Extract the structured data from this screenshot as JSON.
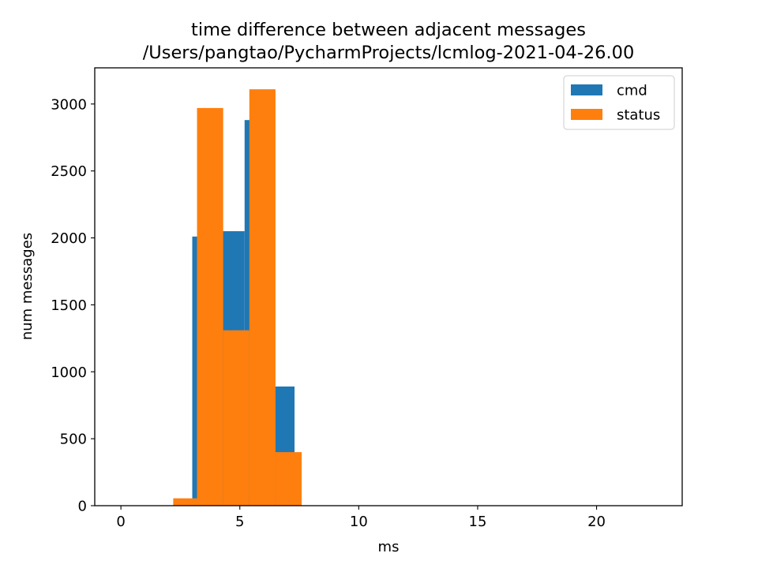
{
  "chart_data": {
    "type": "histogram",
    "title_lines": [
      "time difference between adjacent messages",
      "/Users/pangtao/PycharmProjects/lcmlog-2021-04-26.00"
    ],
    "xlabel": "ms",
    "ylabel": "num messages",
    "xlim": [
      -1.1,
      23.6
    ],
    "ylim": [
      0,
      3270
    ],
    "xticks": [
      0,
      5,
      10,
      15,
      20
    ],
    "yticks": [
      0,
      500,
      1000,
      1500,
      2000,
      2500,
      3000
    ],
    "grid": false,
    "legend_position": "top-right",
    "series": [
      {
        "name": "cmd",
        "color": "#1f77b4",
        "bins": [
          {
            "x0": 0.0,
            "x1": 1.0,
            "count": 0
          },
          {
            "x0": 3.0,
            "x1": 4.2,
            "count": 2010
          },
          {
            "x0": 4.2,
            "x1": 5.2,
            "count": 2050
          },
          {
            "x0": 5.2,
            "x1": 6.45,
            "count": 2880
          },
          {
            "x0": 6.45,
            "x1": 7.3,
            "count": 890
          },
          {
            "x0": 7.3,
            "x1": 22.5,
            "count": 0
          }
        ]
      },
      {
        "name": "status",
        "color": "#ff7f0e",
        "bins": [
          {
            "x0": 2.2,
            "x1": 3.2,
            "count": 55
          },
          {
            "x0": 3.2,
            "x1": 4.3,
            "count": 2970
          },
          {
            "x0": 4.3,
            "x1": 5.4,
            "count": 1310
          },
          {
            "x0": 5.4,
            "x1": 6.5,
            "count": 3110
          },
          {
            "x0": 6.5,
            "x1": 7.6,
            "count": 400
          }
        ]
      }
    ]
  }
}
